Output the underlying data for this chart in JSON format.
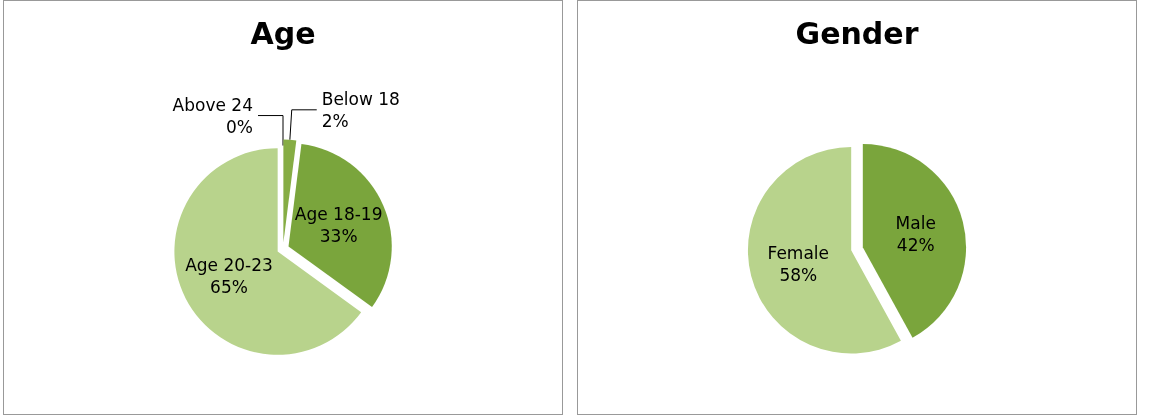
{
  "chart_data": [
    {
      "type": "pie",
      "title": "Age",
      "categories": [
        "Below 18",
        "Age 18-19",
        "Age 20-23",
        "Above 24"
      ],
      "values": [
        2,
        33,
        65,
        0
      ],
      "colors": [
        "#86ad44",
        "#7aa53c",
        "#b8d38c",
        "#a9c878"
      ],
      "value_labels": [
        "2%",
        "33%",
        "65%",
        "0%"
      ]
    },
    {
      "type": "pie",
      "title": "Gender",
      "categories": [
        "Male",
        "Female"
      ],
      "values": [
        42,
        58
      ],
      "colors": [
        "#7aa53c",
        "#b8d38c"
      ],
      "value_labels": [
        "42%",
        "58%"
      ]
    }
  ]
}
